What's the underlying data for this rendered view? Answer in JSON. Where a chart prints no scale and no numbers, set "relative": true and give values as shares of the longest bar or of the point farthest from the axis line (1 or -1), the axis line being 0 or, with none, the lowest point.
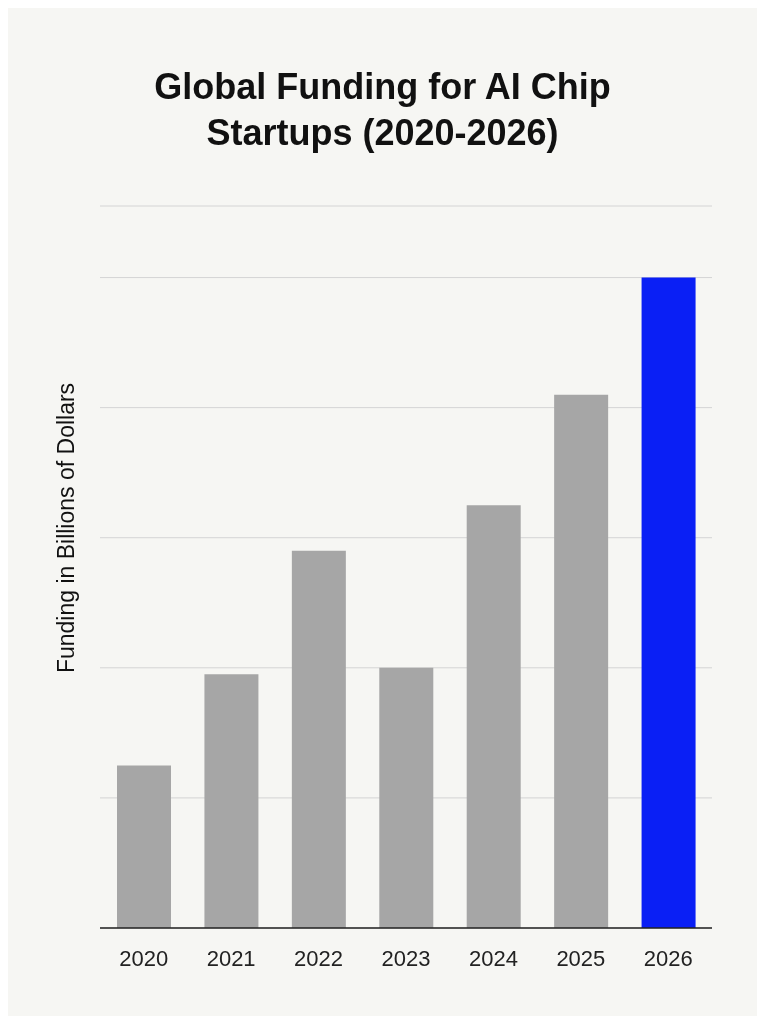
{
  "chart_data": {
    "type": "bar",
    "title": "Global Funding for AI Chip Startups (2020-2026)",
    "ylabel": "Funding in Billions of Dollars",
    "categories": [
      "2020",
      "2021",
      "2022",
      "2023",
      "2024",
      "2025",
      "2026"
    ],
    "values": [
      0.25,
      0.39,
      0.58,
      0.4,
      0.65,
      0.82,
      1
    ],
    "colors": [
      "#a6a6a6",
      "#a6a6a6",
      "#a6a6a6",
      "#a6a6a6",
      "#a6a6a6",
      "#a6a6a6",
      "#0a1ff5"
    ],
    "relative": true,
    "grid": "y"
  }
}
